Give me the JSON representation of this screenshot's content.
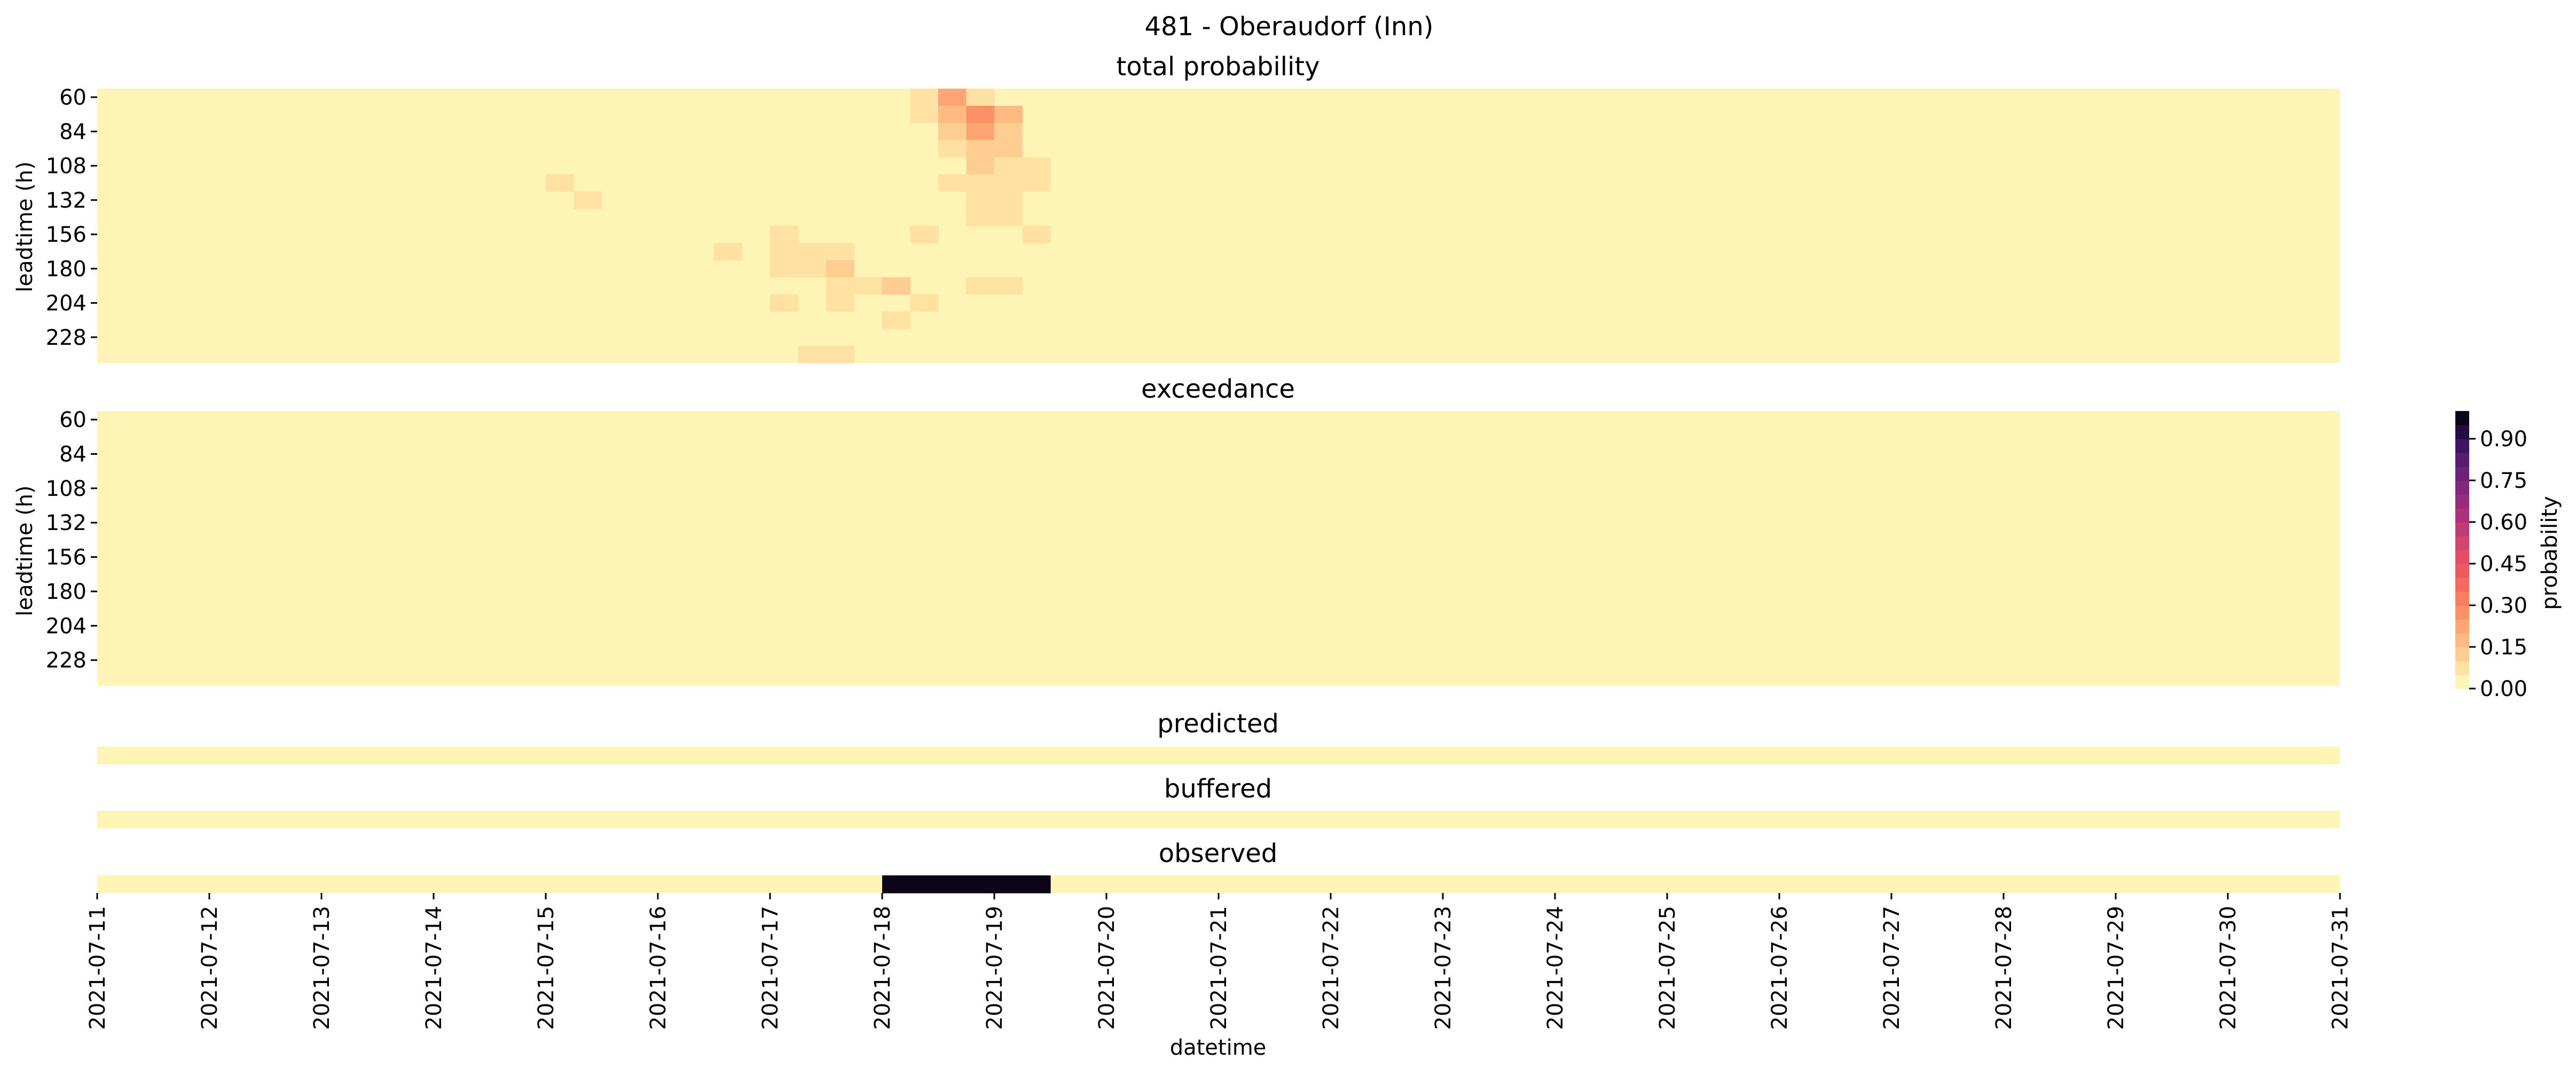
{
  "chart_data": {
    "type": "heatmap",
    "title": "481 - Oberaudorf (Inn)",
    "xlabel": "datetime",
    "ylabel": "leadtime (h)",
    "x_tick_labels": [
      "2021-07-11",
      "2021-07-12",
      "2021-07-13",
      "2021-07-14",
      "2021-07-15",
      "2021-07-16",
      "2021-07-17",
      "2021-07-18",
      "2021-07-19",
      "2021-07-20",
      "2021-07-21",
      "2021-07-22",
      "2021-07-23",
      "2021-07-24",
      "2021-07-25",
      "2021-07-26",
      "2021-07-27",
      "2021-07-28",
      "2021-07-29",
      "2021-07-30",
      "2021-07-31"
    ],
    "y_tick_labels": [
      "60",
      "84",
      "108",
      "132",
      "156",
      "180",
      "204",
      "228"
    ],
    "columns_per_day": 4,
    "leadtime_rows": 16,
    "colorbar": {
      "label": "probability",
      "ticks": [
        "0.00",
        "0.15",
        "0.30",
        "0.45",
        "0.60",
        "0.75",
        "0.90"
      ],
      "range": [
        0,
        1
      ],
      "levels": 20,
      "colormap": "magma_r"
    },
    "panels": [
      {
        "title": "total probability",
        "cells": [
          [
            0,
            29,
            0.08
          ],
          [
            0,
            30,
            0.22
          ],
          [
            0,
            31,
            0.08
          ],
          [
            1,
            29,
            0.06
          ],
          [
            1,
            30,
            0.18
          ],
          [
            1,
            31,
            0.25
          ],
          [
            1,
            32,
            0.15
          ],
          [
            2,
            30,
            0.12
          ],
          [
            2,
            31,
            0.2
          ],
          [
            2,
            32,
            0.12
          ],
          [
            3,
            30,
            0.06
          ],
          [
            3,
            31,
            0.1
          ],
          [
            3,
            32,
            0.1
          ],
          [
            4,
            31,
            0.12
          ],
          [
            4,
            32,
            0.08
          ],
          [
            4,
            33,
            0.06
          ],
          [
            5,
            16,
            0.06
          ],
          [
            5,
            30,
            0.06
          ],
          [
            5,
            31,
            0.06
          ],
          [
            5,
            32,
            0.06
          ],
          [
            5,
            33,
            0.06
          ],
          [
            6,
            17,
            0.06
          ],
          [
            6,
            31,
            0.06
          ],
          [
            6,
            32,
            0.06
          ],
          [
            7,
            31,
            0.06
          ],
          [
            7,
            32,
            0.06
          ],
          [
            8,
            24,
            0.06
          ],
          [
            8,
            29,
            0.06
          ],
          [
            8,
            33,
            0.06
          ],
          [
            9,
            22,
            0.05
          ],
          [
            9,
            24,
            0.06
          ],
          [
            9,
            25,
            0.06
          ],
          [
            9,
            26,
            0.06
          ],
          [
            10,
            24,
            0.06
          ],
          [
            10,
            25,
            0.06
          ],
          [
            10,
            26,
            0.12
          ],
          [
            11,
            26,
            0.06
          ],
          [
            11,
            27,
            0.06
          ],
          [
            11,
            28,
            0.1
          ],
          [
            11,
            31,
            0.06
          ],
          [
            11,
            32,
            0.06
          ],
          [
            12,
            24,
            0.06
          ],
          [
            12,
            26,
            0.06
          ],
          [
            12,
            29,
            0.06
          ],
          [
            13,
            28,
            0.06
          ],
          [
            15,
            25,
            0.06
          ],
          [
            15,
            26,
            0.06
          ]
        ]
      },
      {
        "title": "exceedance",
        "cells": []
      },
      {
        "title": "predicted",
        "cells": []
      },
      {
        "title": "buffered",
        "cells": []
      },
      {
        "title": "observed",
        "cells": [
          [
            0,
            28,
            1
          ],
          [
            0,
            29,
            1
          ],
          [
            0,
            30,
            1
          ],
          [
            0,
            31,
            1
          ],
          [
            0,
            32,
            1
          ],
          [
            0,
            33,
            1
          ]
        ]
      }
    ]
  }
}
